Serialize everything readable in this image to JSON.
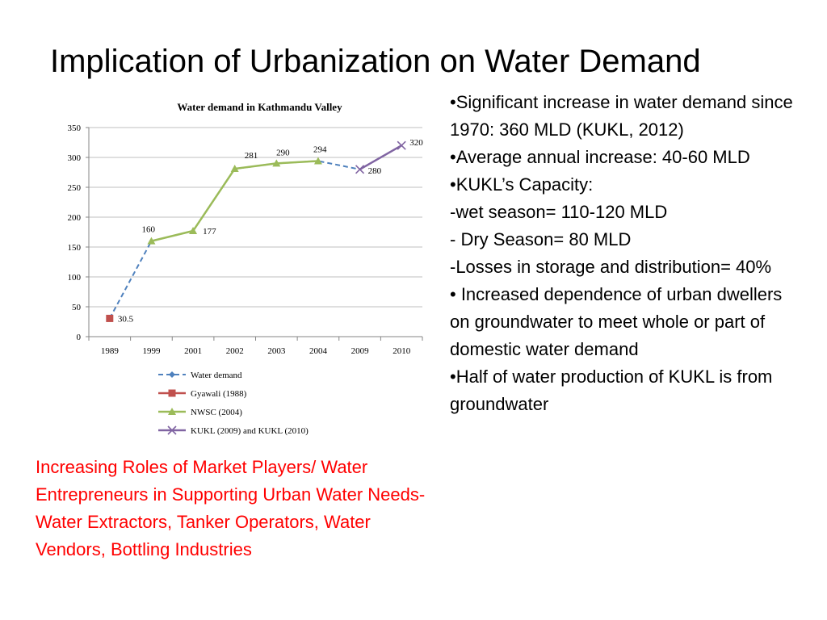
{
  "slide": {
    "title": "Implication of Urbanization on Water Demand",
    "bullets": [
      "•Significant increase in water demand since 1970: 360 MLD (KUKL, 2012)",
      "•Average annual increase: 40-60 MLD",
      "•KUKL’s Capacity:",
      "-wet season= 110-120 MLD",
      "- Dry Season= 80 MLD",
      "-Losses in storage and distribution= 40%",
      "• Increased dependence of urban dwellers on groundwater to meet whole or part of domestic water demand",
      "•Half of water production of KUKL is from groundwater"
    ],
    "red_note": "Increasing Roles of Market Players/ Water Entrepreneurs in Supporting Urban Water Needs- Water Extractors, Tanker Operators, Water Vendors, Bottling Industries",
    "red_color": "#ff0000"
  },
  "chart_data": {
    "type": "line",
    "title": "Water demand in Kathmandu Valley",
    "xlabel": "",
    "ylabel": "",
    "categories": [
      "1989",
      "1999",
      "2001",
      "2002",
      "2003",
      "2004",
      "2009",
      "2010"
    ],
    "ylim": [
      0,
      350
    ],
    "yticks": [
      0,
      50,
      100,
      150,
      200,
      250,
      300,
      350
    ],
    "grid": true,
    "legend_position": "bottom",
    "series": [
      {
        "name": "Water demand",
        "values": [
          30.5,
          160,
          177,
          281,
          290,
          294,
          280,
          320
        ],
        "color": "#4f81bd",
        "style": "dashed",
        "marker": "diamond"
      },
      {
        "name": "Gyawali (1988)",
        "values": [
          30.5,
          null,
          null,
          null,
          null,
          null,
          null,
          null
        ],
        "color": "#c0504d",
        "style": "solid",
        "marker": "square"
      },
      {
        "name": "NWSC (2004)",
        "values": [
          null,
          160,
          177,
          281,
          290,
          294,
          null,
          null
        ],
        "color": "#9bbb59",
        "style": "solid",
        "marker": "triangle"
      },
      {
        "name": "KUKL (2009) and KUKL (2010)",
        "values": [
          null,
          null,
          null,
          null,
          null,
          null,
          280,
          320
        ],
        "color": "#8064a2",
        "style": "solid",
        "marker": "x"
      }
    ],
    "data_labels": [
      {
        "category": "1989",
        "value": 30.5,
        "text": "30.5"
      },
      {
        "category": "1999",
        "value": 160,
        "text": "160"
      },
      {
        "category": "2001",
        "value": 177,
        "text": "177"
      },
      {
        "category": "2002",
        "value": 281,
        "text": "281"
      },
      {
        "category": "2003",
        "value": 290,
        "text": "290"
      },
      {
        "category": "2004",
        "value": 294,
        "text": "294"
      },
      {
        "category": "2009",
        "value": 280,
        "text": "280"
      },
      {
        "category": "2010",
        "value": 320,
        "text": "320"
      }
    ]
  }
}
